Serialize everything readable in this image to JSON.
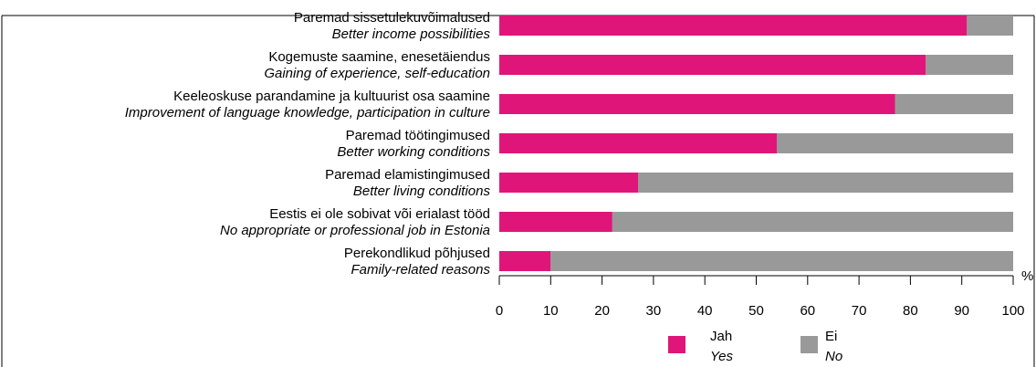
{
  "chart_data": {
    "type": "stacked-bar-horizontal",
    "categories": [
      "Paremad sissetulekuvõimalused",
      "Kogemuste saamine, enesetäiendus",
      "Keeleoskuse parandamine ja kultuurist osa saamine",
      "Paremad töötingimused",
      "Paremad elamistingimused",
      "Eestis ei ole sobivat või erialast tööd",
      "Perekondlikud põhjused"
    ],
    "categories_en": [
      "Better income possibilities",
      "Gaining of experience, self-education",
      "Improvement of language knowledge, participation in culture",
      "Better working conditions",
      "Better living conditions",
      "No appropriate or professional job in Estonia",
      "Family-related reasons"
    ],
    "series": [
      {
        "name": "Jah",
        "name_en": "Yes",
        "color": "#e0157a",
        "values": [
          91,
          83,
          77,
          54,
          27,
          22,
          10
        ]
      },
      {
        "name": "Ei",
        "name_en": "No",
        "color": "#999999",
        "values": [
          9,
          17,
          23,
          46,
          73,
          78,
          90
        ]
      }
    ],
    "xlim": [
      0,
      100
    ],
    "xticks": [
      0,
      10,
      20,
      30,
      40,
      50,
      60,
      70,
      80,
      90,
      100
    ],
    "x_unit": "%"
  }
}
